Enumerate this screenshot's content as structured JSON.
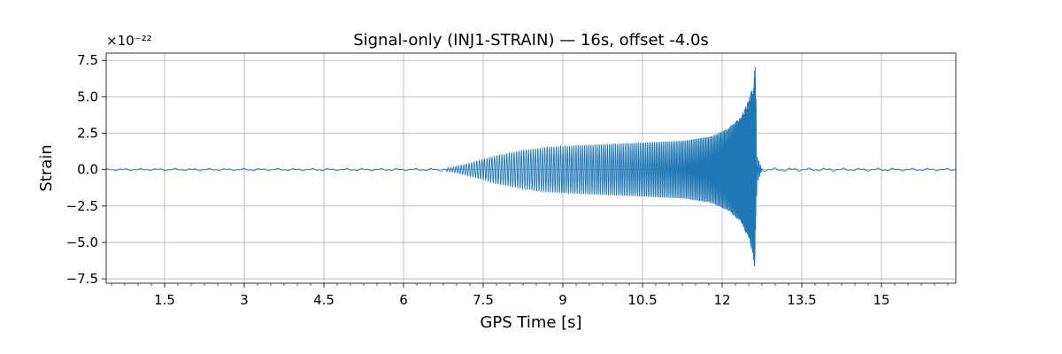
{
  "chart_data": {
    "type": "line",
    "title": "Signal-only (INJ1-STRAIN) — 16s, offset -4.0s",
    "xlabel": "GPS Time [s]",
    "ylabel": "Strain",
    "y_exponent_label": "×10⁻²²",
    "y_scale_factor": 1e-22,
    "xlim": [
      0.4,
      16.4
    ],
    "ylim": [
      -7.8,
      8.0
    ],
    "x_ticks": [
      1.5,
      3,
      4.5,
      6,
      7.5,
      9,
      10.5,
      12,
      13.5,
      15
    ],
    "x_tick_labels": [
      "1.5",
      "3",
      "4.5",
      "6",
      "7.5",
      "9",
      "10.5",
      "12",
      "13.5",
      "15"
    ],
    "y_ticks": [
      -7.5,
      -5.0,
      -2.5,
      0.0,
      2.5,
      5.0,
      7.5
    ],
    "y_tick_labels": [
      "−7.5",
      "−5.0",
      "−2.5",
      "0.0",
      "2.5",
      "5.0",
      "7.5"
    ],
    "grid": true,
    "series": [
      {
        "color": "#1f77b4",
        "envelope_points": [
          {
            "x": 0.4,
            "amp": 0.08
          },
          {
            "x": 6.6,
            "amp": 0.08
          },
          {
            "x": 6.9,
            "amp": 0.15
          },
          {
            "x": 7.2,
            "amp": 0.4
          },
          {
            "x": 7.5,
            "amp": 0.7
          },
          {
            "x": 7.8,
            "amp": 1.0
          },
          {
            "x": 8.2,
            "amp": 1.3
          },
          {
            "x": 8.7,
            "amp": 1.55
          },
          {
            "x": 9.5,
            "amp": 1.7
          },
          {
            "x": 10.5,
            "amp": 1.85
          },
          {
            "x": 11.3,
            "amp": 2.0
          },
          {
            "x": 11.8,
            "amp": 2.3
          },
          {
            "x": 12.1,
            "amp": 2.8
          },
          {
            "x": 12.35,
            "amp": 3.6
          },
          {
            "x": 12.5,
            "amp": 4.8
          },
          {
            "x": 12.58,
            "amp": 5.8
          },
          {
            "x": 12.62,
            "amp": 7.4
          },
          {
            "x": 12.66,
            "amp": 1.5
          },
          {
            "x": 12.75,
            "amp": 0.12
          },
          {
            "x": 16.4,
            "amp": 0.08
          }
        ]
      }
    ]
  }
}
